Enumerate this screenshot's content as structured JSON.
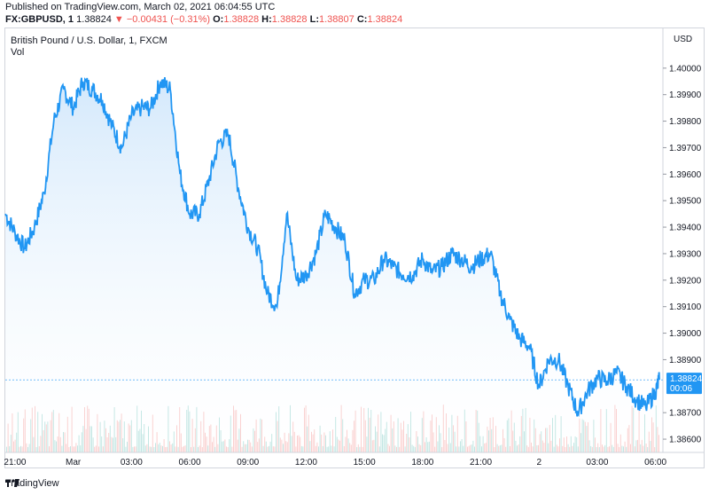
{
  "header": {
    "published": "Published on TradingView.com, March 02, 2021 06:04:55 UTC",
    "symbol": "FX:GBPUSD, 1",
    "last": "1.38824",
    "arrow": "▼",
    "change": "−0.00431 (−0.31%)",
    "o_label": "O:",
    "o_val": "1.38828",
    "h_label": "H:",
    "h_val": "1.38828",
    "l_label": "L:",
    "l_val": "1.38807",
    "c_label": "C:",
    "c_val": "1.38824"
  },
  "legend": {
    "title": "British Pound / U.S. Dollar, 1, FXCM",
    "volume": "Vol"
  },
  "price_axis": {
    "currency": "USD",
    "current_price": "1.38824",
    "countdown": "00:06"
  },
  "footer": {
    "brand": "TradingView"
  },
  "colors": {
    "line": "#2196f3",
    "fill_top": "#cfe6fb",
    "volume_up": "#26a69a",
    "volume_down": "#ef5350"
  },
  "chart_data": {
    "type": "area",
    "title": "British Pound / U.S. Dollar, 1, FXCM",
    "ylim": [
      1.3855,
      1.4015
    ],
    "y_ticks": [
      "1.40000",
      "1.39900",
      "1.39800",
      "1.39700",
      "1.39600",
      "1.39500",
      "1.39400",
      "1.39300",
      "1.39200",
      "1.39100",
      "1.39000",
      "1.38900",
      "1.38700",
      "1.38600"
    ],
    "y_tick_values": [
      1.4,
      1.399,
      1.398,
      1.397,
      1.396,
      1.395,
      1.394,
      1.393,
      1.392,
      1.391,
      1.39,
      1.389,
      1.387,
      1.386
    ],
    "x_ticks": [
      "21:00",
      "Mar",
      "03:00",
      "06:00",
      "09:00",
      "12:00",
      "15:00",
      "18:00",
      "21:00",
      "2",
      "03:00",
      "06:00"
    ],
    "x_tick_hours": [
      0,
      3,
      6,
      9,
      12,
      15,
      18,
      21,
      24,
      27,
      30,
      33
    ],
    "x_range_hours": [
      -0.5,
      33.2
    ],
    "series": [
      {
        "name": "GBPUSD",
        "x_hours": [
          -0.5,
          0.0,
          0.5,
          1.0,
          1.5,
          2.0,
          2.5,
          3.0,
          3.5,
          4.0,
          4.5,
          5.0,
          5.5,
          6.0,
          6.5,
          7.0,
          7.5,
          8.0,
          8.5,
          9.0,
          9.5,
          10.0,
          10.5,
          11.0,
          11.5,
          12.0,
          12.5,
          13.0,
          13.5,
          14.0,
          14.5,
          15.0,
          15.5,
          16.0,
          16.5,
          17.0,
          17.5,
          18.0,
          18.5,
          19.0,
          19.5,
          20.0,
          20.5,
          21.0,
          21.5,
          22.0,
          22.5,
          23.0,
          23.5,
          24.0,
          24.5,
          25.0,
          25.5,
          26.0,
          26.5,
          27.0,
          27.5,
          28.0,
          28.5,
          29.0,
          29.5,
          30.0,
          30.5,
          31.0,
          31.5,
          32.0,
          32.5,
          33.0,
          33.2
        ],
        "values": [
          1.3945,
          1.3938,
          1.3932,
          1.394,
          1.3953,
          1.398,
          1.3992,
          1.3985,
          1.3995,
          1.3992,
          1.3988,
          1.3978,
          1.397,
          1.3982,
          1.3985,
          1.3985,
          1.3995,
          1.3992,
          1.396,
          1.3945,
          1.3945,
          1.3958,
          1.3972,
          1.3975,
          1.3955,
          1.394,
          1.3932,
          1.3915,
          1.391,
          1.3945,
          1.392,
          1.3922,
          1.393,
          1.3945,
          1.394,
          1.3935,
          1.3915,
          1.392,
          1.392,
          1.3928,
          1.3925,
          1.3922,
          1.3922,
          1.3928,
          1.3923,
          1.3925,
          1.393,
          1.3928,
          1.3925,
          1.3928,
          1.393,
          1.3915,
          1.3905,
          1.3898,
          1.3895,
          1.388,
          1.389,
          1.389,
          1.388,
          1.387,
          1.3878,
          1.3883,
          1.3882,
          1.3885,
          1.388,
          1.3875,
          1.3872,
          1.3878,
          1.38824
        ]
      }
    ]
  }
}
